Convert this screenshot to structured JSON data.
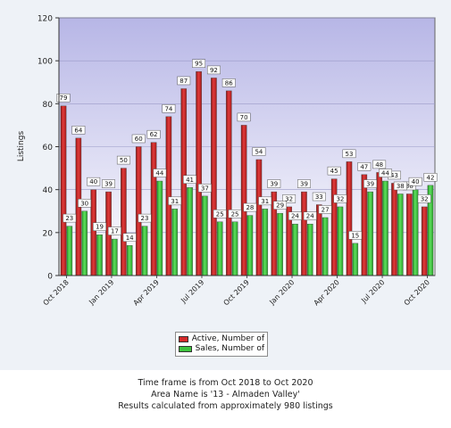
{
  "chart_data": {
    "type": "bar",
    "ylabel": "Listings",
    "xlabel": "",
    "ylim": [
      0,
      120
    ],
    "yticks": [
      0,
      20,
      40,
      60,
      80,
      100,
      120
    ],
    "grid": true,
    "legend_position": "bottom-center",
    "categories": [
      "Oct 2018",
      "Nov 2018",
      "Dec 2018",
      "Jan 2019",
      "Feb 2019",
      "Mar 2019",
      "Apr 2019",
      "May 2019",
      "Jun 2019",
      "Jul 2019",
      "Aug 2019",
      "Sep 2019",
      "Oct 2019",
      "Nov 2019",
      "Dec 2019",
      "Jan 2020",
      "Feb 2020",
      "Mar 2020",
      "Apr 2020",
      "May 2020",
      "Jun 2020",
      "Jul 2020",
      "Aug 2020",
      "Sep 2020",
      "Oct 2020"
    ],
    "tick_labels": [
      {
        "index": 0,
        "label": "Oct 2018"
      },
      {
        "index": 3,
        "label": "Jan 2019"
      },
      {
        "index": 6,
        "label": "Apr 2019"
      },
      {
        "index": 9,
        "label": "Jul 2019"
      },
      {
        "index": 12,
        "label": "Oct 2019"
      },
      {
        "index": 15,
        "label": "Jan 2020"
      },
      {
        "index": 18,
        "label": "Apr 2020"
      },
      {
        "index": 21,
        "label": "Jul 2020"
      },
      {
        "index": 24,
        "label": "Oct 2020"
      }
    ],
    "series": [
      {
        "name": "Active, Number of",
        "color": "#d42a2a",
        "values": [
          79,
          64,
          40,
          39,
          50,
          60,
          62,
          74,
          87,
          95,
          92,
          86,
          70,
          54,
          39,
          32,
          39,
          33,
          45,
          53,
          47,
          48,
          43,
          38,
          32
        ]
      },
      {
        "name": "Sales, Number of",
        "color": "#3ec23e",
        "values": [
          23,
          30,
          19,
          17,
          14,
          23,
          44,
          31,
          41,
          37,
          25,
          25,
          28,
          31,
          29,
          24,
          24,
          27,
          32,
          15,
          39,
          44,
          38,
          40,
          42
        ]
      }
    ]
  },
  "footer": {
    "line1": "Time frame is from Oct 2018 to Oct 2020",
    "line2": "Area Name is '13 - Almaden Valley'",
    "line3": "Results calculated from approximately 980 listings"
  }
}
